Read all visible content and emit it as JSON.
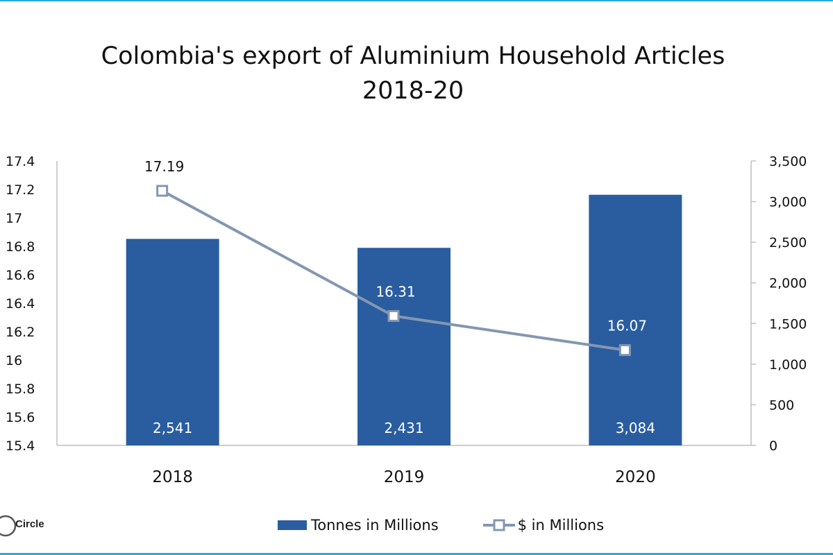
{
  "title_line1": "Colombia's export of Aluminium Household Articles",
  "title_line2": "2018-20",
  "logo_text": "Circle",
  "colors": {
    "bars": "#2a5d9f",
    "line": "#8497b0",
    "frame": "#29a8e0"
  },
  "chart_data": {
    "type": "bar",
    "categories": [
      "2018",
      "2019",
      "2020"
    ],
    "series": [
      {
        "name": "Tonnes in Millions",
        "type": "bar",
        "axis": "right",
        "values": [
          2541,
          2431,
          3084
        ],
        "labels": [
          "2,541",
          "2,431",
          "3,084"
        ]
      },
      {
        "name": "$ in Millions",
        "type": "line",
        "axis": "left",
        "values": [
          17.19,
          16.31,
          16.07
        ],
        "labels": [
          "17.19",
          "16.31",
          "16.07"
        ]
      }
    ],
    "left_axis": {
      "ylim": [
        15.4,
        17.4
      ],
      "ticks": [
        "15.4",
        "15.6",
        "15.8",
        "16",
        "16.2",
        "16.4",
        "16.6",
        "16.8",
        "17",
        "17.2",
        "17.4"
      ]
    },
    "right_axis": {
      "ylim": [
        0,
        3500
      ],
      "ticks": [
        "0",
        "500",
        "1,000",
        "1,500",
        "2,000",
        "2,500",
        "3,000",
        "3,500"
      ]
    },
    "grid": false,
    "legend": "bottom"
  }
}
